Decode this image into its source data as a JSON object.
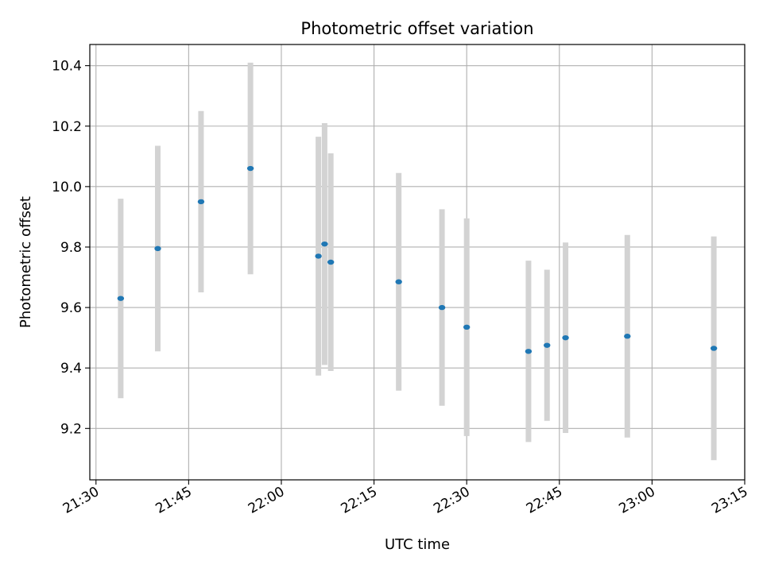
{
  "chart_data": {
    "type": "scatter",
    "title": "Photometric offset variation",
    "xlabel": "UTC time",
    "ylabel": "Photometric offset",
    "x_ticks": [
      "21:30",
      "21:45",
      "22:00",
      "22:15",
      "22:30",
      "22:45",
      "23:00",
      "23:15"
    ],
    "y_ticks": [
      "9.2",
      "9.4",
      "9.6",
      "9.8",
      "10.0",
      "10.2",
      "10.4"
    ],
    "xlim": [
      "21:29",
      "23:15"
    ],
    "ylim": [
      9.03,
      10.47
    ],
    "grid": true,
    "errorbar_color": "#d3d3d3",
    "marker_color": "#1f77b4",
    "series": [
      {
        "points": [
          {
            "x": "21:34",
            "y": 9.63,
            "err": 0.33
          },
          {
            "x": "21:40",
            "y": 9.795,
            "err": 0.34
          },
          {
            "x": "21:47",
            "y": 9.95,
            "err": 0.3
          },
          {
            "x": "21:55",
            "y": 10.06,
            "err": 0.35
          },
          {
            "x": "22:06",
            "y": 9.77,
            "err": 0.395
          },
          {
            "x": "22:07",
            "y": 9.81,
            "err": 0.4
          },
          {
            "x": "22:08",
            "y": 9.75,
            "err": 0.36
          },
          {
            "x": "22:19",
            "y": 9.685,
            "err": 0.36
          },
          {
            "x": "22:26",
            "y": 9.6,
            "err": 0.325
          },
          {
            "x": "22:30",
            "y": 9.535,
            "err": 0.36
          },
          {
            "x": "22:40",
            "y": 9.455,
            "err": 0.3
          },
          {
            "x": "22:43",
            "y": 9.475,
            "err": 0.25
          },
          {
            "x": "22:46",
            "y": 9.5,
            "err": 0.315
          },
          {
            "x": "22:56",
            "y": 9.505,
            "err": 0.335
          },
          {
            "x": "23:10",
            "y": 9.465,
            "err": 0.37
          }
        ]
      }
    ]
  }
}
